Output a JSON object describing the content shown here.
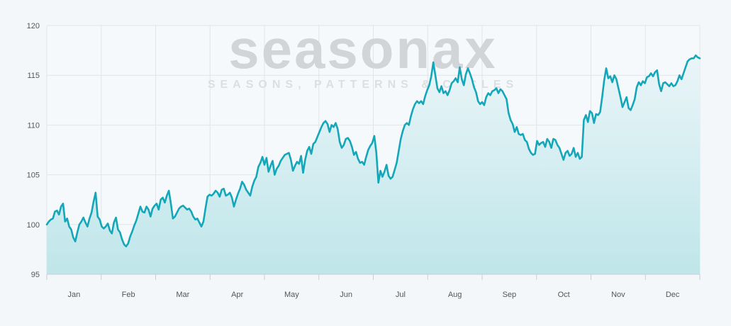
{
  "watermark": {
    "logo": "seasonax",
    "tagline": "SEASONS, PATTERNS & CYCLES"
  },
  "chart_data": {
    "type": "area",
    "title": "",
    "xlabel": "",
    "ylabel": "",
    "ylim": [
      95,
      120
    ],
    "yticks": [
      "95",
      "100",
      "105",
      "110",
      "115",
      "120"
    ],
    "months": [
      "Jan",
      "Feb",
      "Mar",
      "Apr",
      "May",
      "Jun",
      "Jul",
      "Aug",
      "Sep",
      "Oct",
      "Nov",
      "Dec"
    ],
    "grid": true,
    "colors": {
      "line": "#14a7b9",
      "fill_top": "#eaf5f8",
      "fill_bottom": "#bfe6ea",
      "grid": "#e1e5e8"
    },
    "series": [
      {
        "x_unit": "trading day index",
        "x_start": 0,
        "values": [
          100.0,
          100.3,
          100.5,
          100.6,
          101.3,
          101.4,
          101.0,
          101.8,
          102.1,
          100.3,
          100.6,
          99.8,
          99.5,
          98.7,
          98.3,
          99.2,
          100.0,
          100.3,
          100.7,
          100.2,
          99.8,
          100.6,
          101.2,
          102.3,
          103.2,
          100.8,
          100.5,
          99.8,
          99.6,
          99.8,
          100.1,
          99.4,
          99.1,
          100.2,
          100.7,
          99.5,
          99.2,
          98.5,
          98.0,
          97.8,
          98.1,
          98.8,
          99.3,
          99.9,
          100.4,
          101.1,
          101.8,
          101.3,
          101.2,
          101.8,
          101.5,
          100.8,
          101.6,
          101.9,
          102.1,
          101.5,
          102.5,
          102.7,
          102.2,
          102.9,
          103.4,
          102.1,
          100.6,
          100.8,
          101.2,
          101.6,
          101.8,
          101.9,
          101.7,
          101.5,
          101.6,
          101.3,
          100.8,
          100.5,
          100.6,
          100.2,
          99.8,
          100.3,
          101.6,
          102.8,
          103.0,
          102.9,
          103.1,
          103.4,
          103.2,
          102.8,
          103.5,
          103.6,
          102.9,
          103.0,
          103.2,
          102.7,
          101.8,
          102.5,
          103.1,
          103.6,
          104.3,
          104.0,
          103.5,
          103.2,
          102.9,
          103.8,
          104.4,
          104.8,
          105.8,
          106.2,
          106.8,
          106.0,
          106.7,
          105.3,
          105.9,
          106.4,
          105.0,
          105.6,
          105.9,
          106.4,
          106.7,
          107.0,
          107.1,
          107.2,
          106.5,
          105.4,
          105.9,
          106.3,
          106.1,
          106.9,
          105.2,
          106.5,
          107.4,
          107.8,
          107.1,
          108.1,
          108.3,
          108.8,
          109.3,
          109.8,
          110.2,
          110.4,
          110.1,
          109.3,
          110.0,
          109.8,
          110.2,
          109.6,
          108.3,
          107.7,
          108.0,
          108.6,
          108.7,
          108.4,
          107.8,
          107.0,
          107.3,
          106.6,
          106.2,
          106.3,
          106.0,
          106.8,
          107.5,
          107.9,
          108.2,
          108.9,
          107.2,
          104.2,
          105.4,
          104.8,
          105.3,
          106.0,
          104.9,
          104.6,
          104.8,
          105.5,
          106.2,
          107.4,
          108.6,
          109.4,
          110.0,
          110.2,
          110.0,
          110.9,
          111.6,
          112.1,
          112.4,
          112.2,
          112.4,
          112.1,
          112.9,
          113.5,
          114.0,
          114.9,
          116.3,
          115.0,
          113.7,
          113.3,
          113.9,
          113.2,
          113.4,
          113.0,
          113.5,
          114.2,
          114.4,
          114.7,
          114.3,
          115.8,
          114.6,
          114.0,
          115.1,
          115.7,
          115.2,
          114.6,
          113.8,
          113.3,
          112.4,
          112.1,
          112.3,
          112.0,
          112.8,
          113.2,
          113.0,
          113.4,
          113.5,
          113.7,
          113.2,
          113.6,
          113.4,
          113.0,
          112.6,
          111.2,
          110.5,
          110.1,
          109.3,
          109.8,
          109.1,
          109.0,
          109.1,
          108.5,
          108.3,
          107.6,
          107.2,
          107.0,
          107.1,
          108.4,
          108.0,
          108.2,
          108.3,
          107.8,
          108.6,
          108.3,
          107.7,
          108.6,
          108.5,
          108.0,
          107.7,
          107.1,
          106.5,
          107.2,
          107.4,
          106.9,
          107.1,
          107.7,
          106.8,
          107.2,
          106.6,
          106.8,
          110.5,
          111.0,
          110.3,
          111.4,
          111.2,
          110.2,
          111.1,
          111.0,
          111.3,
          112.8,
          114.5,
          115.7,
          114.7,
          114.9,
          114.3,
          115.0,
          114.6,
          113.7,
          112.8,
          111.8,
          112.3,
          112.8,
          111.7,
          111.5,
          112.0,
          112.6,
          113.8,
          114.3,
          114.0,
          114.4,
          114.2,
          114.8,
          114.9,
          115.2,
          114.9,
          115.3,
          115.5,
          114.1,
          113.4,
          114.2,
          114.3,
          114.1,
          113.9,
          114.2,
          113.9,
          114.0,
          114.4,
          115.0,
          114.6,
          115.2,
          115.8,
          116.4,
          116.6,
          116.7,
          116.7,
          117.0,
          116.8,
          116.7
        ]
      }
    ]
  }
}
